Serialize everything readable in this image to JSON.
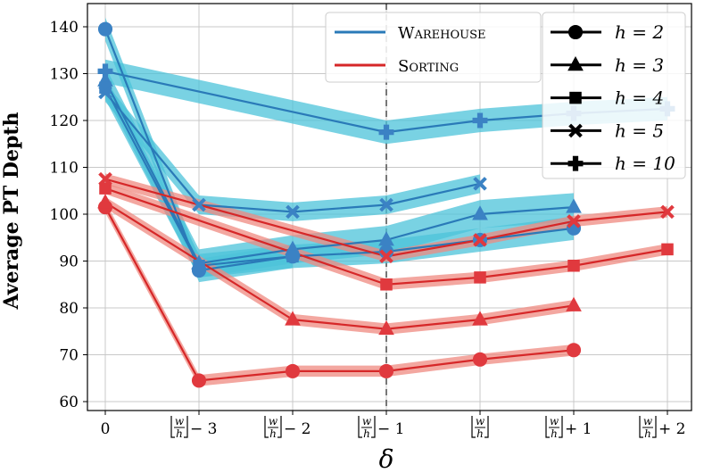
{
  "chart_data": {
    "type": "line",
    "ylabel": "Average PT Depth",
    "xlabel": "δ",
    "ylim": [
      60,
      145
    ],
    "yticks": [
      60,
      70,
      80,
      90,
      100,
      110,
      120,
      130,
      140
    ],
    "xticks": [
      {
        "main": "0",
        "frac_num": "",
        "frac_den": "",
        "suffix": ""
      },
      {
        "main": "",
        "frac_num": "w",
        "frac_den": "h",
        "suffix": "− 3"
      },
      {
        "main": "",
        "frac_num": "w",
        "frac_den": "h",
        "suffix": "− 2"
      },
      {
        "main": "",
        "frac_num": "w",
        "frac_den": "h",
        "suffix": "− 1"
      },
      {
        "main": "",
        "frac_num": "w",
        "frac_den": "h",
        "suffix": ""
      },
      {
        "main": "",
        "frac_num": "w",
        "frac_den": "h",
        "suffix": "+ 1"
      },
      {
        "main": "",
        "frac_num": "w",
        "frac_den": "h",
        "suffix": "+ 2"
      }
    ],
    "vline_index": 3,
    "grid": true,
    "legend_env": [
      {
        "label": "Warehouse",
        "color": "#2a7ab8"
      },
      {
        "label": "Sorting",
        "color": "#d62728"
      }
    ],
    "legend_h": [
      {
        "label": "h = 2",
        "marker": "circle"
      },
      {
        "label": "h = 3",
        "marker": "triangle"
      },
      {
        "label": "h = 4",
        "marker": "square"
      },
      {
        "label": "h = 5",
        "marker": "x"
      },
      {
        "label": "h = 10",
        "marker": "plus"
      }
    ],
    "series": [
      {
        "env": "Warehouse",
        "h": 2,
        "marker": "circle",
        "color": "#2a7ab8",
        "band": "#4cc3d9",
        "band_width": 2.5,
        "points": [
          [
            0,
            139.5
          ],
          [
            1,
            88
          ],
          [
            2,
            91
          ],
          [
            3,
            92
          ],
          [
            4,
            94.5
          ],
          [
            5,
            97
          ]
        ]
      },
      {
        "env": "Warehouse",
        "h": 3,
        "marker": "triangle",
        "color": "#2a7ab8",
        "band": "#4cc3d9",
        "band_width": 3,
        "points": [
          [
            0,
            128.5
          ],
          [
            1,
            89.5
          ],
          [
            2,
            92.5
          ],
          [
            3,
            94.5
          ],
          [
            4,
            100
          ],
          [
            5,
            101.5
          ]
        ]
      },
      {
        "env": "Warehouse",
        "h": 4,
        "marker": "square",
        "color": "#2a7ab8",
        "band": "#4cc3d9",
        "band_width": 2.5,
        "points": [
          [
            0,
            127
          ],
          [
            1,
            89
          ],
          [
            2,
            91
          ]
        ]
      },
      {
        "env": "Warehouse",
        "h": 5,
        "marker": "x",
        "color": "#2a7ab8",
        "band": "#4cc3d9",
        "band_width": 2,
        "points": [
          [
            0,
            126
          ],
          [
            1,
            102
          ],
          [
            2,
            100.5
          ],
          [
            3,
            102
          ],
          [
            4,
            106.5
          ]
        ]
      },
      {
        "env": "Warehouse",
        "h": 10,
        "marker": "plus",
        "color": "#2a7ab8",
        "band": "#4cc3d9",
        "band_width": 2.5,
        "points": [
          [
            0,
            130.5
          ],
          [
            3,
            117.5
          ],
          [
            4,
            120
          ],
          [
            5,
            121.5
          ],
          [
            6,
            122.5
          ]
        ]
      },
      {
        "env": "Sorting",
        "h": 2,
        "marker": "circle",
        "color": "#d62728",
        "band": "#ef8a80",
        "band_width": 1.2,
        "points": [
          [
            0,
            101.5
          ],
          [
            1,
            64.5
          ],
          [
            2,
            66.5
          ],
          [
            3,
            66.5
          ],
          [
            4,
            69
          ],
          [
            5,
            71
          ]
        ]
      },
      {
        "env": "Sorting",
        "h": 3,
        "marker": "triangle",
        "color": "#d62728",
        "band": "#ef8a80",
        "band_width": 1.2,
        "points": [
          [
            0,
            102.5
          ],
          [
            2,
            77.5
          ],
          [
            3,
            75.5
          ],
          [
            4,
            77.5
          ],
          [
            5,
            80.5
          ]
        ]
      },
      {
        "env": "Sorting",
        "h": 4,
        "marker": "square",
        "color": "#d62728",
        "band": "#ef8a80",
        "band_width": 1.2,
        "points": [
          [
            0,
            105.5
          ],
          [
            3,
            85
          ],
          [
            4,
            86.5
          ],
          [
            5,
            89
          ],
          [
            6,
            92.5
          ]
        ]
      },
      {
        "env": "Sorting",
        "h": 5,
        "marker": "x",
        "color": "#d62728",
        "band": "#ef8a80",
        "band_width": 1.2,
        "points": [
          [
            0,
            107.5
          ],
          [
            3,
            91
          ],
          [
            4,
            94.5
          ],
          [
            5,
            98.5
          ],
          [
            6,
            100.5
          ]
        ]
      }
    ]
  }
}
